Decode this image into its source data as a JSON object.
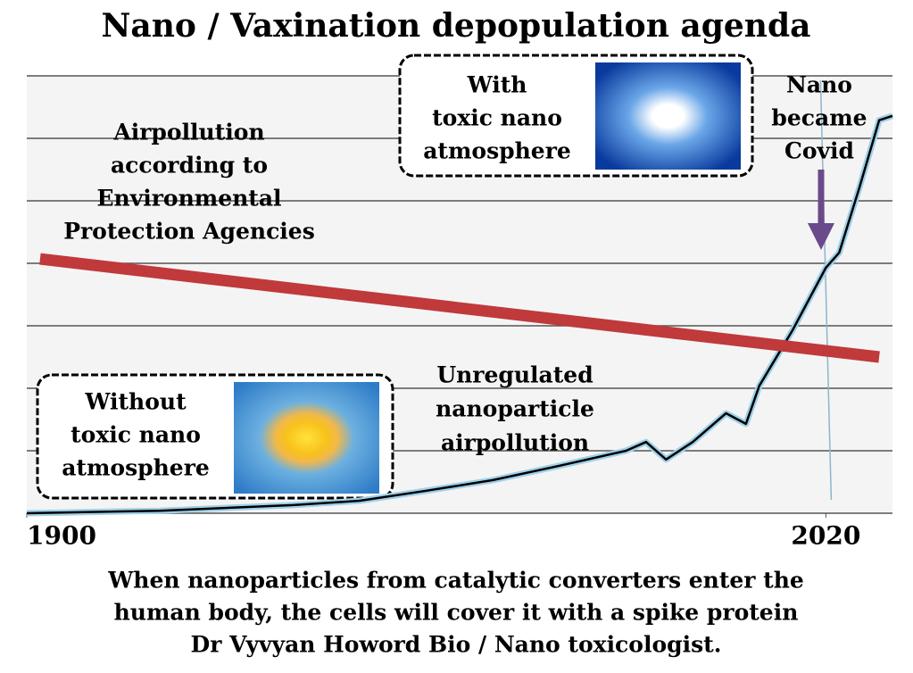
{
  "chart_data": {
    "type": "line",
    "title": "Nano / Vaxination depopulation agenda",
    "caption": [
      "When nanoparticles from catalytic converters enter the",
      "human body, the cells will cover it with a spike protein",
      "Dr Vyvyan Howord Bio / Nano toxicologist."
    ],
    "xlim": [
      1900,
      2030
    ],
    "xticks": [
      1900,
      2020
    ],
    "ylim": [
      0,
      7
    ],
    "yticks": [
      0,
      1,
      2,
      3,
      4,
      5,
      6,
      7
    ],
    "grid": true,
    "series": [
      {
        "color": "#000000",
        "x": [
          1900,
          1920,
          1940,
          1950,
          1960,
          1970,
          1980,
          1990,
          1993,
          1996,
          2000,
          2005,
          2008,
          2010,
          2015,
          2020,
          2022,
          2025,
          2028,
          2030
        ],
        "values": [
          0,
          0.04,
          0.13,
          0.2,
          0.36,
          0.53,
          0.76,
          1.0,
          1.14,
          0.86,
          1.14,
          1.6,
          1.43,
          2.04,
          2.93,
          3.93,
          4.17,
          5.2,
          6.29,
          6.36
        ]
      },
      {
        "color": "#c0393b",
        "x": [
          1902,
          2028
        ],
        "values": [
          4.07,
          2.5
        ]
      }
    ],
    "annotations": [
      {
        "lines": [
          "Airpollution",
          "according to",
          "Environmental",
          "Protection Agencies"
        ]
      },
      {
        "lines": [
          "With",
          "toxic nano",
          "atmosphere"
        ]
      },
      {
        "lines": [
          "Nano",
          "became",
          "Covid"
        ]
      },
      {
        "lines": [
          "Unregulated",
          "nanoparticle",
          "airpollution"
        ]
      },
      {
        "lines": [
          "Without",
          "toxic nano",
          "atmosphere"
        ]
      }
    ]
  }
}
